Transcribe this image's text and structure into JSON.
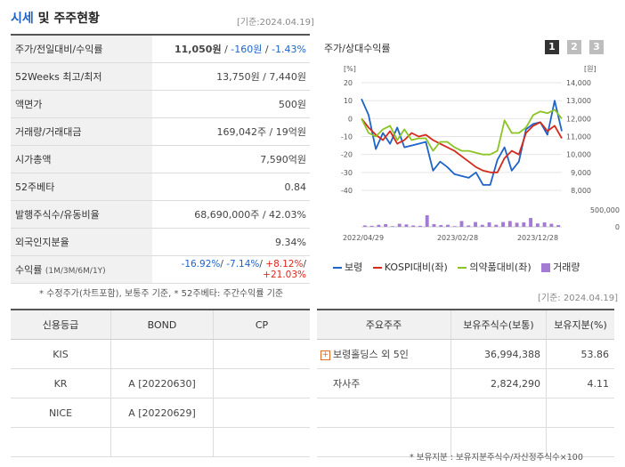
{
  "header": {
    "title_accent": "시세",
    "title_rest": " 및 주주현황",
    "base_date": "[기준:2024.04.19]"
  },
  "quote_rows": [
    {
      "label": "주가/전일대비/수익률",
      "price": "11,050원",
      "change": "-160원",
      "rate": "-1.43%"
    },
    {
      "label": "52Weeks 최고/최저",
      "value": "13,750원 / 7,440원"
    },
    {
      "label": "액면가",
      "value": "500원"
    },
    {
      "label": "거래량/거래대금",
      "value": "169,042주 / 19억원"
    },
    {
      "label": "시가총액",
      "value": "7,590억원"
    },
    {
      "label": "52주베타",
      "value": "0.84"
    },
    {
      "label": "발행주식수/유동비율",
      "value": "68,690,000주 / 42.03%"
    },
    {
      "label": "외국인지분율",
      "value": "9.34%"
    },
    {
      "label": "수익률",
      "label_sub": "(1M/3M/6M/1Y)",
      "r1": "-16.92%",
      "r2": "-7.14%",
      "r3": "+8.12%",
      "r4": "+21.03%"
    }
  ],
  "quote_note": "* 수정주가(차트포함), 보통주 기준, * 52주베타: 주간수익률 기준",
  "chart_panel": {
    "title": "주가/상대수익률",
    "period_buttons": [
      "1",
      "2",
      "3"
    ],
    "left_unit": "[%]",
    "right_unit": "[원]",
    "base_date": "[기준: 2024.04.19]"
  },
  "chart_data": {
    "type": "line",
    "x_labels": [
      "2022/04/29",
      "2023/02/28",
      "2023/12/28"
    ],
    "left_axis": {
      "ticks": [
        20,
        10,
        0,
        -10,
        -20,
        -30,
        -40
      ],
      "range": [
        -40,
        20
      ]
    },
    "right_axis": {
      "ticks": [
        "14,000",
        "13,000",
        "12,000",
        "11,000",
        "10,000",
        "9,000",
        "8,000"
      ],
      "range": [
        8000,
        14000
      ]
    },
    "volume_axis": {
      "ticks": [
        "500,000",
        "0"
      ],
      "range": [
        0,
        600000
      ]
    },
    "series": [
      {
        "name": "보령",
        "color": "#1e63c8",
        "values": [
          11,
          2,
          -17,
          -8,
          -14,
          -5,
          -16,
          -15,
          -14,
          -13,
          -29,
          -24,
          -27,
          -31,
          -32,
          -33,
          -30,
          -37,
          -37,
          -23,
          -16,
          -29,
          -24,
          -6,
          -3,
          -2,
          -9,
          10,
          -7
        ]
      },
      {
        "name": "KOSPI대비(좌)",
        "color": "#d42a1c",
        "values": [
          0,
          -5,
          -9,
          -12,
          -7,
          -14,
          -12,
          -8,
          -10,
          -9,
          -12,
          -14,
          -16,
          -18,
          -21,
          -24,
          -27,
          -29,
          -30,
          -30,
          -22,
          -18,
          -20,
          -8,
          -4,
          -2,
          -7,
          -4,
          -11
        ]
      },
      {
        "name": "의약품대비(좌)",
        "color": "#8cc424",
        "values": [
          0,
          -8,
          -10,
          -6,
          -4,
          -12,
          -6,
          -12,
          -11,
          -11,
          -18,
          -13,
          -13,
          -16,
          -18,
          -18,
          -19,
          -20,
          -20,
          -18,
          -1,
          -8,
          -8,
          -5,
          2,
          4,
          3,
          5,
          0
        ]
      }
    ],
    "volume": {
      "name": "거래량",
      "color": "#a37bd3",
      "values": [
        40000,
        30000,
        60000,
        80000,
        20000,
        90000,
        70000,
        40000,
        30000,
        340000,
        80000,
        50000,
        60000,
        20000,
        170000,
        40000,
        140000,
        60000,
        130000,
        60000,
        140000,
        170000,
        120000,
        130000,
        260000,
        100000,
        130000,
        90000,
        50000
      ]
    }
  },
  "credit": {
    "headers": [
      "신용등급",
      "BOND",
      "CP"
    ],
    "rows": [
      [
        "KIS",
        "",
        ""
      ],
      [
        "KR",
        "A  [20220630]",
        ""
      ],
      [
        "NICE",
        "A  [20220629]",
        ""
      ],
      [
        "",
        "",
        ""
      ]
    ]
  },
  "holders": {
    "headers": [
      "주요주주",
      "보유주식수(보통)",
      "보유지분(%)"
    ],
    "rows": [
      {
        "name": "보령홀딩스 외 5인",
        "shares": "36,994,388",
        "pct": "53.86"
      },
      {
        "name": "자사주",
        "shares": "2,824,290",
        "pct": "4.11"
      },
      {
        "name": "",
        "shares": "",
        "pct": ""
      },
      {
        "name": "",
        "shares": "",
        "pct": ""
      }
    ],
    "note": "* 보유지분 : 보유지분주식수/자산정주식수×100"
  }
}
